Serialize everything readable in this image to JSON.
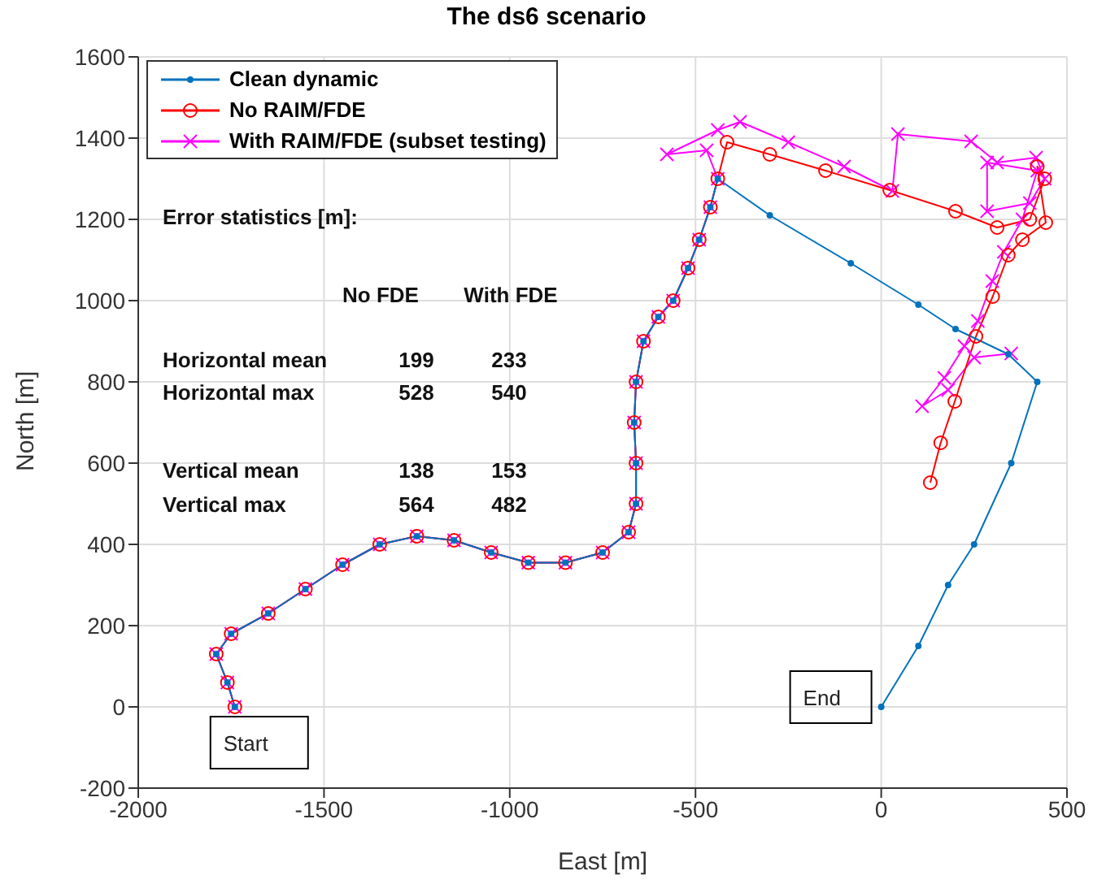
{
  "chart_data": {
    "type": "line",
    "title": "The ds6 scenario",
    "xlabel": "East [m]",
    "ylabel": "North [m]",
    "xlim": [
      -2000,
      500
    ],
    "xticks": [
      -2000,
      -1500,
      -1000,
      -500,
      0,
      500
    ],
    "ylim": [
      -200,
      1600
    ],
    "yticks": [
      -200,
      0,
      200,
      400,
      600,
      800,
      1000,
      1200,
      1400,
      1600
    ],
    "grid": true,
    "legend": "top left",
    "series": [
      {
        "name": "Clean dynamic",
        "color": "#0072bd",
        "marker": "circle",
        "x": [
          -1740,
          -1760,
          -1790,
          -1750,
          -1650,
          -1550,
          -1450,
          -1350,
          -1250,
          -1150,
          -1050,
          -950,
          -850,
          -750,
          -680,
          -660,
          -660,
          -665,
          -660,
          -640,
          -600,
          -560,
          -520,
          -490,
          -460,
          -440,
          -300,
          -82,
          100,
          200,
          342,
          420,
          350,
          250,
          180,
          100,
          0
        ],
        "values": [
          0,
          60,
          130,
          180,
          230,
          290,
          350,
          400,
          420,
          410,
          380,
          355,
          355,
          380,
          430,
          500,
          600,
          700,
          800,
          900,
          960,
          1000,
          1080,
          1150,
          1230,
          1300,
          1210,
          1092,
          990,
          930,
          868,
          800,
          600,
          400,
          300,
          150,
          0
        ]
      },
      {
        "name": "No RAIM/FDE",
        "color": "#ff0000",
        "marker": "circle",
        "x": [
          -1740,
          -1760,
          -1790,
          -1750,
          -1650,
          -1550,
          -1450,
          -1350,
          -1250,
          -1150,
          -1050,
          -950,
          -850,
          -750,
          -680,
          -660,
          -660,
          -665,
          -660,
          -640,
          -600,
          -560,
          -520,
          -490,
          -460,
          -440,
          -415,
          -300,
          -150,
          23,
          200,
          312,
          400,
          440,
          420,
          443,
          380,
          342,
          300,
          255,
          198,
          160,
          132
        ],
        "values": [
          0,
          60,
          130,
          180,
          230,
          290,
          350,
          400,
          420,
          410,
          380,
          355,
          355,
          380,
          430,
          500,
          600,
          700,
          800,
          900,
          960,
          1000,
          1080,
          1150,
          1230,
          1300,
          1390,
          1360,
          1320,
          1272,
          1220,
          1180,
          1200,
          1300,
          1330,
          1192,
          1150,
          1112,
          1010,
          912,
          752,
          650,
          552
        ]
      },
      {
        "name": "With RAIM/FDE (subset testing)",
        "color": "#ff00ff",
        "marker": "cross",
        "x": [
          -1740,
          -1760,
          -1790,
          -1750,
          -1650,
          -1550,
          -1450,
          -1350,
          -1250,
          -1150,
          -1050,
          -950,
          -850,
          -750,
          -680,
          -660,
          -660,
          -665,
          -660,
          -640,
          -600,
          -560,
          -520,
          -490,
          -460,
          -440,
          -470,
          -577,
          -440,
          -380,
          -250,
          -100,
          30,
          45,
          242,
          312,
          417,
          440,
          400,
          285,
          285,
          420,
          380,
          330,
          299,
          260,
          224,
          170,
          110,
          180,
          250,
          350
        ],
        "values": [
          0,
          60,
          130,
          180,
          230,
          290,
          350,
          400,
          420,
          410,
          380,
          355,
          355,
          380,
          430,
          500,
          600,
          700,
          800,
          900,
          960,
          1000,
          1080,
          1150,
          1230,
          1300,
          1370,
          1360,
          1420,
          1440,
          1390,
          1330,
          1270,
          1410,
          1392,
          1340,
          1352,
          1300,
          1240,
          1220,
          1340,
          1320,
          1200,
          1120,
          1048,
          950,
          888,
          810,
          740,
          780,
          860,
          870
        ]
      }
    ],
    "annotations": [
      "Error statistics [m]:",
      "No FDE",
      "With FDE",
      "Horizontal mean",
      "199",
      "233",
      "Horizontal max",
      "528",
      "540",
      "Vertical mean",
      "138",
      "153",
      "Vertical max",
      "564",
      "482",
      {
        "text": "Start",
        "x": -1740,
        "y": 0
      },
      {
        "text": "End",
        "x": 0,
        "y": 0
      }
    ]
  }
}
